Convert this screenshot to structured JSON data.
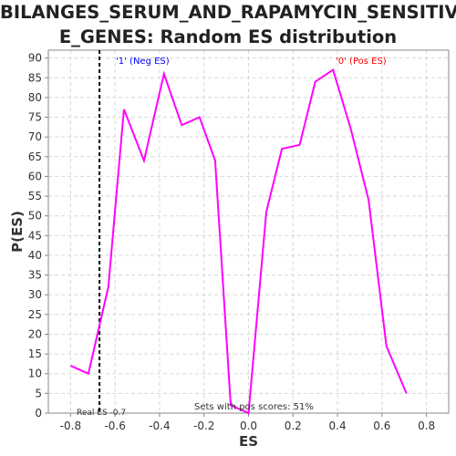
{
  "chart_data": {
    "type": "line",
    "title_lines": [
      "BILANGES_SERUM_AND_RAPAMYCIN_SENSITIV",
      "E_GENES: Random ES distribution"
    ],
    "xlabel": "ES",
    "ylabel": "P(ES)",
    "xlim": [
      -0.9,
      0.9
    ],
    "ylim": [
      0,
      92
    ],
    "xticks": [
      -0.8,
      -0.6,
      -0.4,
      -0.2,
      0.0,
      0.2,
      0.4,
      0.6,
      0.8
    ],
    "xtick_labels": [
      "-0.8",
      "-0.6",
      "-0.4",
      "-0.2",
      "0.0",
      "0.2",
      "0.4",
      "0.6",
      "0.8"
    ],
    "yticks": [
      0,
      5,
      10,
      15,
      20,
      25,
      30,
      35,
      40,
      45,
      50,
      55,
      60,
      65,
      70,
      75,
      80,
      85,
      90
    ],
    "grid": true,
    "series": [
      {
        "color": "#ff00ff",
        "x": [
          -0.8,
          -0.72,
          -0.63,
          -0.56,
          -0.47,
          -0.38,
          -0.3,
          -0.22,
          -0.15,
          -0.08,
          0.0,
          0.08,
          0.15,
          0.23,
          0.3,
          0.38,
          0.46,
          0.54,
          0.62,
          0.71,
          0.79
        ],
        "y": [
          12,
          10,
          32,
          77,
          64,
          86,
          73,
          75,
          64,
          2,
          0,
          51,
          67,
          68,
          84,
          87,
          72,
          54,
          17,
          5,
          null
        ]
      }
    ],
    "real_es": -0.67,
    "annotations": {
      "neg_label": "'1' (Neg ES)",
      "pos_label": "'0' (Pos ES)",
      "real_es_label": "Real ES -0.7",
      "pos_scores_label": "Sets with pos scores: 51%"
    },
    "colors": {
      "line": "#ff00ff",
      "neg_label": "#0000ff",
      "pos_label": "#ff0000",
      "grid": "#d8d8d8",
      "axis": "#888888",
      "text": "#333333",
      "real_es_line": "#000000"
    }
  }
}
